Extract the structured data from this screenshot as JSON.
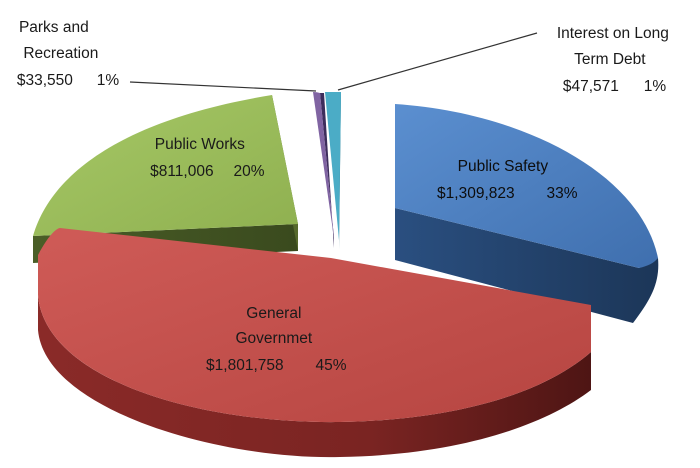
{
  "chart_data": {
    "type": "pie",
    "style": "3d-exploded",
    "slices": [
      {
        "label_lines": [
          "Public Safety"
        ],
        "value_text": "$1,309,823",
        "percent_text": "33%",
        "value": 1309823,
        "color": "#4f81bd"
      },
      {
        "label_lines": [
          "General",
          "Governmet"
        ],
        "value_text": "$1,801,758",
        "percent_text": "45%",
        "value": 1801758,
        "color": "#c0504d"
      },
      {
        "label_lines": [
          "Public Works"
        ],
        "value_text": "$811,006",
        "percent_text": "20%",
        "value": 811006,
        "color": "#9bbb59"
      },
      {
        "label_lines": [
          "Parks and",
          "Recreation"
        ],
        "value_text": "$33,550",
        "percent_text": "1%",
        "value": 33550,
        "color": "#8064a2"
      },
      {
        "label_lines": [
          "Interest on Long",
          "Term Debt"
        ],
        "value_text": "$47,571",
        "percent_text": "1%",
        "value": 47571,
        "color": "#4bacc6"
      }
    ]
  }
}
